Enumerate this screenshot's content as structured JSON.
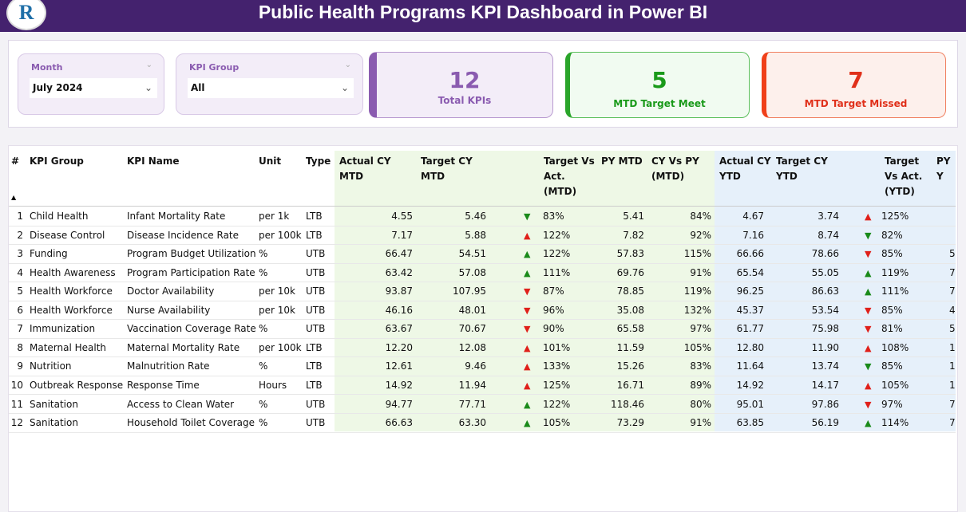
{
  "header": {
    "title": "Public Health Programs KPI Dashboard in Power BI",
    "logo_text": "R"
  },
  "slicers": {
    "month": {
      "label": "Month",
      "value": "July 2024"
    },
    "kpi_group": {
      "label": "KPI Group",
      "value": "All"
    }
  },
  "cards": [
    {
      "value": "12",
      "label": "Total KPIs"
    },
    {
      "value": "5",
      "label": "MTD Target Meet"
    },
    {
      "value": "7",
      "label": "MTD Target Missed"
    }
  ],
  "colors": {
    "header": "#44226e",
    "green": "#1a8a1a",
    "red": "#e0201a",
    "purple": "#8a5bb0"
  },
  "table": {
    "headers": [
      "#",
      "KPI Group",
      "KPI Name",
      "Unit",
      "Type",
      "Actual CY MTD",
      "Target CY MTD",
      "Target Vs Act. (MTD)",
      "PY MTD",
      "CY Vs PY (MTD)",
      "Actual CY YTD",
      "Target CY YTD",
      "Target Vs Act. (YTD)",
      "PY Y"
    ],
    "rows": [
      [
        "1",
        "Child Health",
        "Infant Mortality Rate",
        "per 1k",
        "LTB",
        "4.55",
        "5.46",
        "dn-g",
        "83%",
        "5.41",
        "84%",
        "4.67",
        "3.74",
        "up-r",
        "125%",
        ""
      ],
      [
        "2",
        "Disease Control",
        "Disease Incidence Rate",
        "per 100k",
        "LTB",
        "7.17",
        "5.88",
        "up-r",
        "122%",
        "7.82",
        "92%",
        "7.16",
        "8.74",
        "dn-g",
        "82%",
        ""
      ],
      [
        "3",
        "Funding",
        "Program Budget Utilization",
        "%",
        "UTB",
        "66.47",
        "54.51",
        "up-g",
        "122%",
        "57.83",
        "115%",
        "66.66",
        "78.66",
        "dn-r",
        "85%",
        "5"
      ],
      [
        "4",
        "Health Awareness",
        "Program Participation Rate",
        "%",
        "UTB",
        "63.42",
        "57.08",
        "up-g",
        "111%",
        "69.76",
        "91%",
        "65.54",
        "55.05",
        "up-g",
        "119%",
        "7"
      ],
      [
        "5",
        "Health Workforce",
        "Doctor Availability",
        "per 10k",
        "UTB",
        "93.87",
        "107.95",
        "dn-r",
        "87%",
        "78.85",
        "119%",
        "96.25",
        "86.63",
        "up-g",
        "111%",
        "7"
      ],
      [
        "6",
        "Health Workforce",
        "Nurse Availability",
        "per 10k",
        "UTB",
        "46.16",
        "48.01",
        "dn-r",
        "96%",
        "35.08",
        "132%",
        "45.37",
        "53.54",
        "dn-r",
        "85%",
        "4"
      ],
      [
        "7",
        "Immunization",
        "Vaccination Coverage Rate",
        "%",
        "UTB",
        "63.67",
        "70.67",
        "dn-r",
        "90%",
        "65.58",
        "97%",
        "61.77",
        "75.98",
        "dn-r",
        "81%",
        "5"
      ],
      [
        "8",
        "Maternal Health",
        "Maternal Mortality Rate",
        "per 100k",
        "LTB",
        "12.20",
        "12.08",
        "up-r",
        "101%",
        "11.59",
        "105%",
        "12.80",
        "11.90",
        "up-r",
        "108%",
        "1"
      ],
      [
        "9",
        "Nutrition",
        "Malnutrition Rate",
        "%",
        "LTB",
        "12.61",
        "9.46",
        "up-r",
        "133%",
        "15.26",
        "83%",
        "11.64",
        "13.74",
        "dn-g",
        "85%",
        "1"
      ],
      [
        "10",
        "Outbreak Response",
        "Response Time",
        "Hours",
        "LTB",
        "14.92",
        "11.94",
        "up-r",
        "125%",
        "16.71",
        "89%",
        "14.92",
        "14.17",
        "up-r",
        "105%",
        "1"
      ],
      [
        "11",
        "Sanitation",
        "Access to Clean Water",
        "%",
        "UTB",
        "94.77",
        "77.71",
        "up-g",
        "122%",
        "118.46",
        "80%",
        "95.01",
        "97.86",
        "dn-r",
        "97%",
        "7"
      ],
      [
        "12",
        "Sanitation",
        "Household Toilet Coverage",
        "%",
        "UTB",
        "66.63",
        "63.30",
        "up-g",
        "105%",
        "73.29",
        "91%",
        "63.85",
        "56.19",
        "up-g",
        "114%",
        "7"
      ]
    ]
  }
}
